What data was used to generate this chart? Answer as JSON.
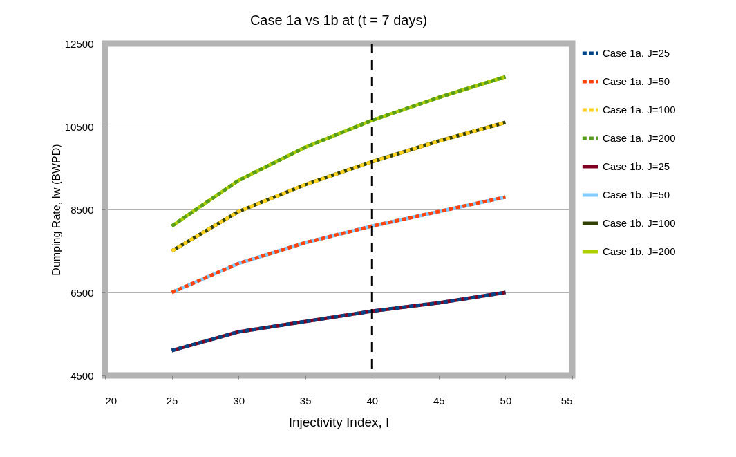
{
  "chart_data": {
    "type": "line",
    "title": "Case 1a vs 1b at (t = 7 days)",
    "xlabel": "Injectivity Index, I",
    "ylabel": "Dumping Rate, Iw (BWPD)",
    "x": [
      25,
      30,
      35,
      40,
      45,
      50
    ],
    "series": [
      {
        "name": "Case 1a. J=25",
        "color": "#004586",
        "line_style": "dotted",
        "values": [
          5100,
          5550,
          5800,
          6050,
          6250,
          6500
        ]
      },
      {
        "name": "Case 1a. J=50",
        "color": "#ff420e",
        "line_style": "dotted",
        "values": [
          6500,
          7200,
          7700,
          8100,
          8450,
          8800
        ]
      },
      {
        "name": "Case 1a. J=100",
        "color": "#ffd320",
        "line_style": "dotted",
        "values": [
          7500,
          8450,
          9100,
          9650,
          10150,
          10600
        ]
      },
      {
        "name": "Case 1a. J=200",
        "color": "#579d1c",
        "line_style": "dotted",
        "values": [
          8100,
          9200,
          10000,
          10650,
          11200,
          11700
        ]
      },
      {
        "name": "Case 1b. J=25",
        "color": "#7e0021",
        "line_style": "solid",
        "values": [
          5100,
          5550,
          5800,
          6050,
          6250,
          6500
        ]
      },
      {
        "name": "Case 1b. J=50",
        "color": "#83caff",
        "line_style": "solid",
        "values": [
          6500,
          7200,
          7700,
          8100,
          8450,
          8800
        ]
      },
      {
        "name": "Case 1b. J=100",
        "color": "#314004",
        "line_style": "solid",
        "values": [
          7500,
          8450,
          9100,
          9650,
          10150,
          10600
        ]
      },
      {
        "name": "Case 1b. J=200",
        "color": "#aecf00",
        "line_style": "solid",
        "values": [
          8100,
          9200,
          10000,
          10650,
          11200,
          11700
        ]
      }
    ],
    "xlim": [
      20,
      55
    ],
    "xticks": [
      20,
      25,
      30,
      35,
      40,
      45,
      50,
      55
    ],
    "ylim": [
      4500,
      12500
    ],
    "yticks": [
      4500,
      6500,
      8500,
      10500,
      12500
    ],
    "ref_lines": [
      {
        "axis": "x",
        "value": 40,
        "color": "#000000",
        "line_style": "dashed"
      }
    ],
    "grid": "y",
    "legend": "right",
    "marker": "none"
  }
}
